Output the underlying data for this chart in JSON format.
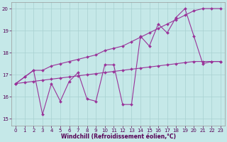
{
  "xlabel": "Windchill (Refroidissement éolien,°C)",
  "bg_color": "#c5e8e8",
  "line_color": "#993399",
  "grid_color": "#a8d0d0",
  "ylim": [
    14.7,
    20.3
  ],
  "xlim": [
    -0.5,
    23.5
  ],
  "yticks": [
    15,
    16,
    17,
    18,
    19,
    20
  ],
  "xticks": [
    0,
    1,
    2,
    3,
    4,
    5,
    6,
    7,
    8,
    9,
    10,
    11,
    12,
    13,
    14,
    15,
    16,
    17,
    18,
    19,
    20,
    21,
    22,
    23
  ],
  "series": [
    {
      "x": [
        0,
        1,
        2,
        3,
        4,
        5,
        6,
        7,
        8,
        9,
        10,
        11,
        12,
        13,
        14,
        15,
        16,
        17,
        18,
        19,
        20,
        21,
        22,
        23
      ],
      "y": [
        16.6,
        16.9,
        17.2,
        17.2,
        17.4,
        17.5,
        17.6,
        17.7,
        17.8,
        17.9,
        18.1,
        18.2,
        18.3,
        18.5,
        18.7,
        18.9,
        19.1,
        19.3,
        19.5,
        19.7,
        19.9,
        20.0,
        20.0,
        20.0
      ]
    },
    {
      "x": [
        0,
        1,
        2,
        3,
        4,
        5,
        6,
        7,
        8,
        9,
        10,
        11,
        12,
        13,
        14,
        15,
        16,
        17,
        18,
        19,
        20,
        21,
        22,
        23
      ],
      "y": [
        16.6,
        16.65,
        16.7,
        16.75,
        16.8,
        16.85,
        16.9,
        16.95,
        17.0,
        17.05,
        17.1,
        17.15,
        17.2,
        17.25,
        17.3,
        17.35,
        17.4,
        17.45,
        17.5,
        17.55,
        17.6,
        17.6,
        17.6,
        17.6
      ]
    },
    {
      "x": [
        0,
        1,
        2,
        3,
        4,
        5,
        6,
        7,
        8,
        9,
        10,
        11,
        12,
        13,
        14,
        15,
        16,
        17,
        18,
        19,
        20,
        21,
        22,
        23
      ],
      "y": [
        16.6,
        16.9,
        17.2,
        15.2,
        16.6,
        15.8,
        16.7,
        17.1,
        15.9,
        15.8,
        17.45,
        17.45,
        15.65,
        15.65,
        18.75,
        18.3,
        19.3,
        18.9,
        19.6,
        20.0,
        18.75,
        17.5,
        17.6,
        17.6
      ]
    }
  ]
}
